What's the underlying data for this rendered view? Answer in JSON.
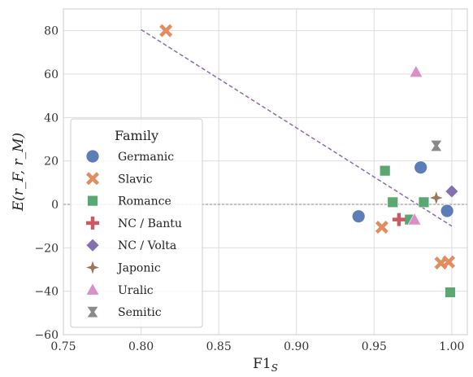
{
  "chart_data": {
    "type": "scatter",
    "xlabel": "F1_S",
    "ylabel": "E(r_F, r_M)",
    "xlim": [
      0.75,
      1.01
    ],
    "ylim": [
      -60,
      90
    ],
    "xticks": [
      0.75,
      0.8,
      0.85,
      0.9,
      0.95,
      1.0
    ],
    "xtick_labels": [
      "0.75",
      "0.80",
      "0.85",
      "0.90",
      "0.95",
      "1.00"
    ],
    "yticks": [
      -60,
      -40,
      -20,
      0,
      20,
      40,
      60,
      80
    ],
    "ytick_labels": [
      "−60",
      "−40",
      "−20",
      "0",
      "20",
      "40",
      "60",
      "80"
    ],
    "grid": true,
    "legend_title": "Family",
    "legend_position": "lower-left",
    "zero_line": 0,
    "trendline": {
      "x": [
        0.8,
        1.0
      ],
      "y": [
        80.5,
        -10
      ],
      "color": "#8c6bb1",
      "style": "dashed"
    },
    "series": [
      {
        "name": "Germanic",
        "marker": "circle",
        "color": "#5a7eb5",
        "points": [
          {
            "x": 0.94,
            "y": -5.5
          },
          {
            "x": 0.98,
            "y": 17
          },
          {
            "x": 0.997,
            "y": -3
          }
        ]
      },
      {
        "name": "Slavic",
        "marker": "x",
        "color": "#e08d5f",
        "points": [
          {
            "x": 0.816,
            "y": 80
          },
          {
            "x": 0.955,
            "y": -10.5
          },
          {
            "x": 0.993,
            "y": -27
          },
          {
            "x": 0.998,
            "y": -26.5
          }
        ]
      },
      {
        "name": "Romance",
        "marker": "square",
        "color": "#5ba771",
        "points": [
          {
            "x": 0.957,
            "y": 15.5
          },
          {
            "x": 0.962,
            "y": 1
          },
          {
            "x": 0.973,
            "y": -7
          },
          {
            "x": 0.982,
            "y": 1
          },
          {
            "x": 0.999,
            "y": -40.5
          }
        ]
      },
      {
        "name": "NC / Bantu",
        "marker": "plus",
        "color": "#cc5a63",
        "points": [
          {
            "x": 0.966,
            "y": -7
          }
        ]
      },
      {
        "name": "NC / Volta",
        "marker": "diamond",
        "color": "#8470b0",
        "points": [
          {
            "x": 1.0,
            "y": 6
          }
        ]
      },
      {
        "name": "Japonic",
        "marker": "star4",
        "color": "#9a775c",
        "points": [
          {
            "x": 0.99,
            "y": 3
          }
        ]
      },
      {
        "name": "Uralic",
        "marker": "triangle",
        "color": "#db8fc8",
        "points": [
          {
            "x": 0.977,
            "y": 61
          },
          {
            "x": 0.976,
            "y": -7
          }
        ]
      },
      {
        "name": "Semitic",
        "marker": "bowtie",
        "color": "#8a8a8a",
        "points": [
          {
            "x": 0.99,
            "y": 27
          }
        ]
      }
    ]
  }
}
